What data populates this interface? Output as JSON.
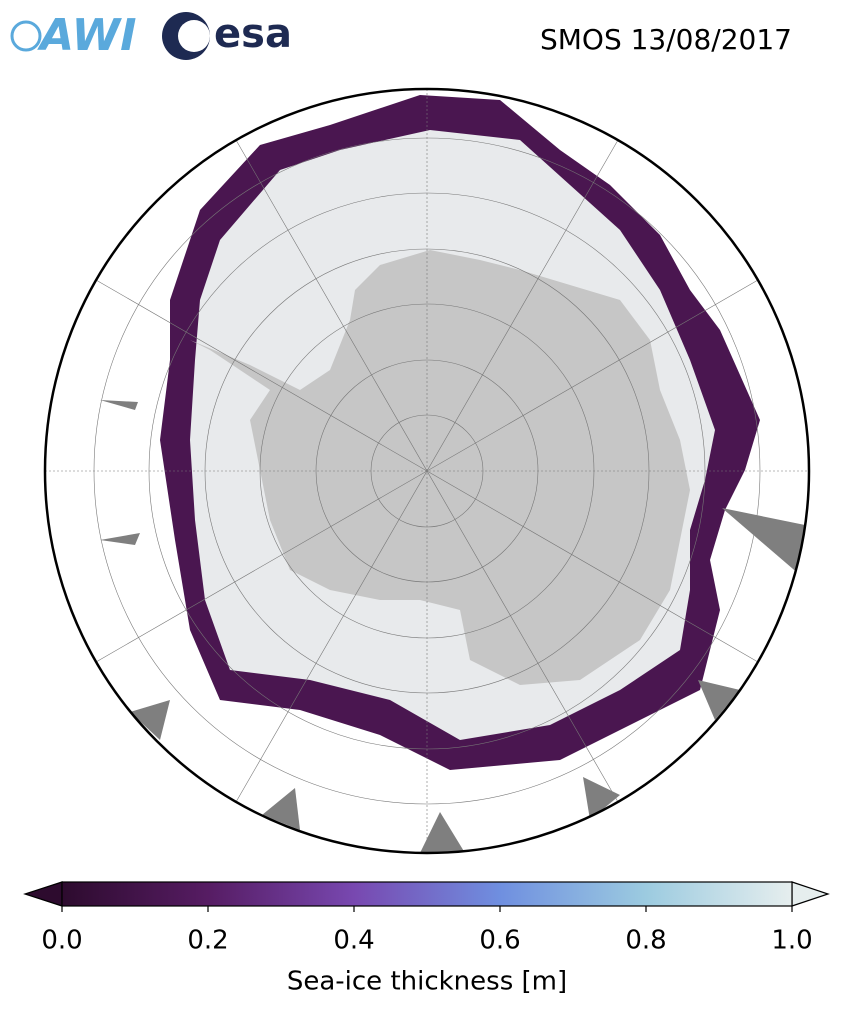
{
  "header": {
    "logo_left": "AWI",
    "logo_right": "esa",
    "title": "SMOS 13/08/2017"
  },
  "colorbar": {
    "label": "Sea-ice thickness [m]",
    "lim": [
      0,
      1
    ],
    "ticks": [
      {
        "value": 0,
        "label": "0.0"
      },
      0.2,
      0.4,
      0.6,
      0.8,
      {
        "value": 1,
        "label": "1.0"
      }
    ],
    "colors": [
      "#2d0b2e",
      "#561c63",
      "#7848b0",
      "#6f8fe0",
      "#9ccbe0",
      "#e6eeee"
    ]
  }
}
